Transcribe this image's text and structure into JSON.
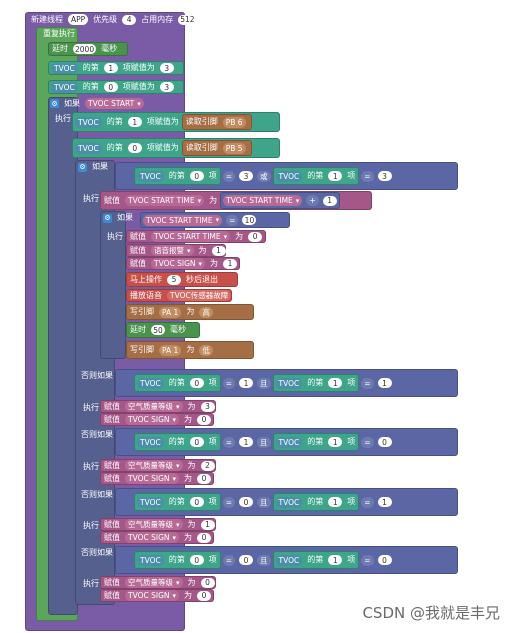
{
  "header": {
    "title": "新建线程",
    "chip1": "APP",
    "priority_label": "优先级",
    "priority": "4",
    "memory_label": "占用内存",
    "memory": "512"
  },
  "loop": {
    "label": "重复执行"
  },
  "delay1": {
    "label": "延时",
    "value": "2000",
    "unit": "毫秒"
  },
  "assign": {
    "var": "TVOC",
    "of": "的第",
    "item_assign": "项赋值为",
    "item": "项",
    "idx1": "1",
    "idx0": "0",
    "val3": "3"
  },
  "if": {
    "label": "如果",
    "do": "执行",
    "elseif": "否则如果"
  },
  "tvoc_start": "TVOC START",
  "tvoc_start_time": "TVOC START TIME",
  "read_pin": "读取引脚",
  "pin_b6": "PB 6",
  "pin_b5": "PB 5",
  "ops": {
    "eq": "=",
    "or": "或",
    "and": "且",
    "plus": "+",
    "ge": "="
  },
  "vals": {
    "v3": "3",
    "v1": "1",
    "v0": "0",
    "v10": "10",
    "v5": "5",
    "v50": "50",
    "v2": "2"
  },
  "set": {
    "label": "赋值",
    "to": "为"
  },
  "voice_alarm": "语音报警",
  "tvoc_sign": "TVOC SIGN",
  "air_quality": "空气质量等级",
  "exit_seconds": {
    "pre": "马上操作",
    "post": "秒后退出"
  },
  "play_voice": {
    "label": "播放语音",
    "text": "TVOC传感器故障"
  },
  "write_pin": {
    "label": "写引脚",
    "pin": "PA 1",
    "to": "为",
    "high": "高",
    "low": "低"
  },
  "delay2": {
    "label": "延时",
    "unit": "毫秒"
  },
  "watermark": "CSDN @我就是丰兄"
}
